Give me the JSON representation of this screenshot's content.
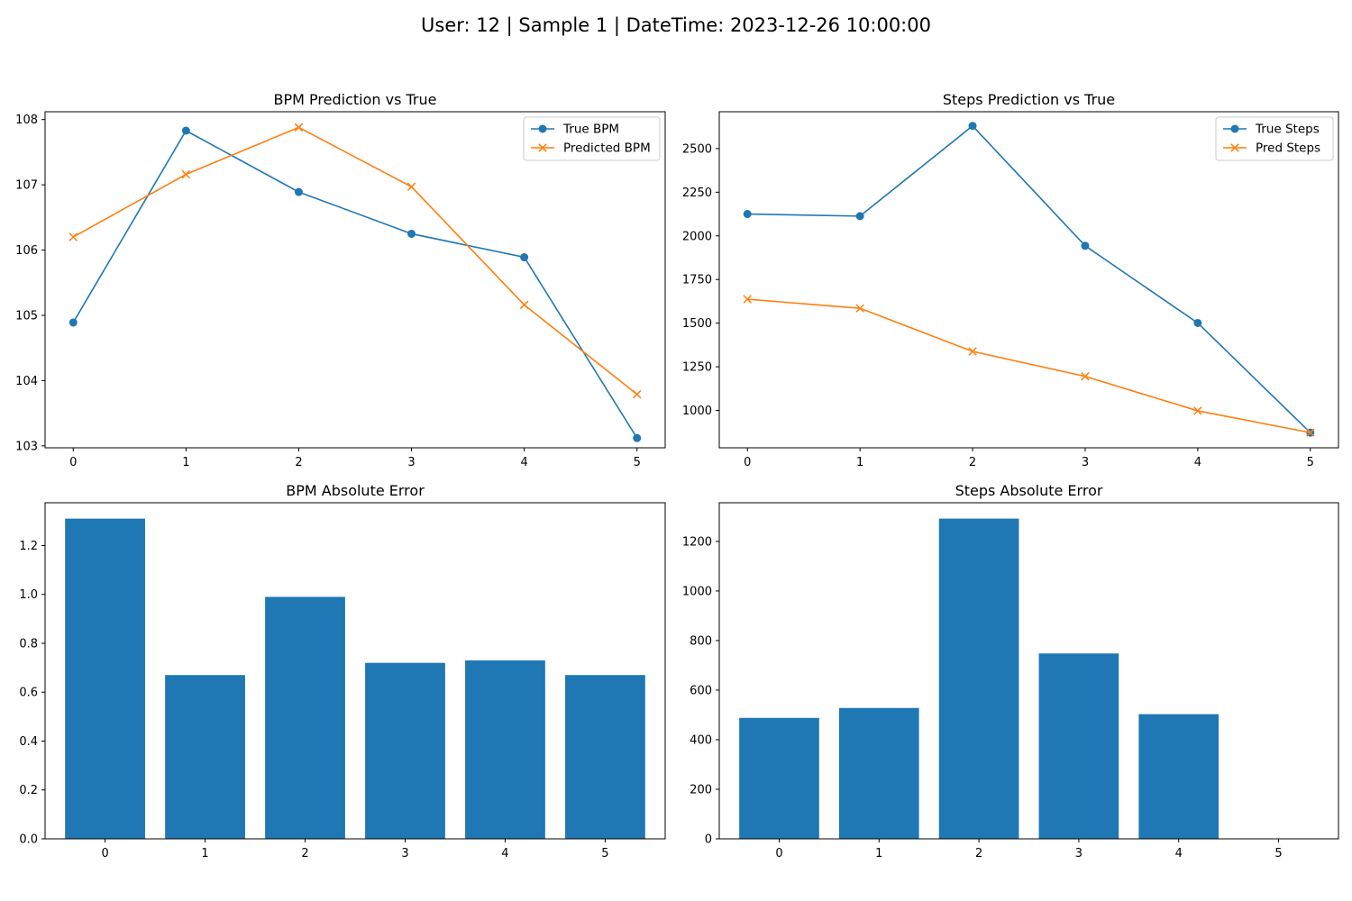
{
  "figure": {
    "title": "User: 12 | Sample 1 | DateTime: 2023-12-26 10:00:00"
  },
  "colors": {
    "true": "#1f77b4",
    "pred": "#ff7f0e",
    "bar": "#1f77b4"
  },
  "chart_data": [
    {
      "type": "line",
      "title": "BPM Prediction vs True",
      "x": [
        0,
        1,
        2,
        3,
        4,
        5
      ],
      "xlim": [
        -0.25,
        5.25
      ],
      "ylim": [
        102.97,
        108.12
      ],
      "yticks": [
        103,
        104,
        105,
        106,
        107,
        108
      ],
      "grid": false,
      "legend": "upper-right",
      "series": [
        {
          "name": "True BPM",
          "marker": "circle",
          "values": [
            104.89,
            107.83,
            106.89,
            106.25,
            105.89,
            103.12
          ]
        },
        {
          "name": "Predicted BPM",
          "marker": "x",
          "values": [
            106.2,
            107.16,
            107.88,
            106.97,
            105.16,
            103.79
          ]
        }
      ]
    },
    {
      "type": "line",
      "title": "Steps Prediction vs True",
      "x": [
        0,
        1,
        2,
        3,
        4,
        5
      ],
      "xlim": [
        -0.25,
        5.25
      ],
      "ylim": [
        786,
        2711
      ],
      "yticks": [
        1000,
        1250,
        1500,
        1750,
        2000,
        2250,
        2500
      ],
      "grid": false,
      "legend": "upper-right",
      "series": [
        {
          "name": "True Steps",
          "marker": "circle",
          "values": [
            2125,
            2113,
            2630,
            1943,
            1501,
            873
          ]
        },
        {
          "name": "Pred Steps",
          "marker": "x",
          "values": [
            1637,
            1585,
            1338,
            1195,
            998,
            873
          ]
        }
      ]
    },
    {
      "type": "bar",
      "title": "BPM Absolute Error",
      "categories": [
        0,
        1,
        2,
        3,
        4,
        5
      ],
      "values": [
        1.31,
        0.67,
        0.99,
        0.72,
        0.73,
        0.67
      ],
      "xlim": [
        -0.6,
        5.6
      ],
      "ylim": [
        0,
        1.375
      ],
      "yticks": [
        0.0,
        0.2,
        0.4,
        0.6,
        0.8,
        1.0,
        1.2
      ],
      "ytick_labels": [
        "0.0",
        "0.2",
        "0.4",
        "0.6",
        "0.8",
        "1.0",
        "1.2"
      ],
      "grid": false
    },
    {
      "type": "bar",
      "title": "Steps Absolute Error",
      "categories": [
        0,
        1,
        2,
        3,
        4,
        5
      ],
      "values": [
        488,
        528,
        1292,
        748,
        503,
        0
      ],
      "xlim": [
        -0.6,
        5.6
      ],
      "ylim": [
        0,
        1356
      ],
      "yticks": [
        0,
        200,
        400,
        600,
        800,
        1000,
        1200
      ],
      "ytick_labels": [
        "0",
        "200",
        "400",
        "600",
        "800",
        "1000",
        "1200"
      ],
      "grid": false
    }
  ]
}
